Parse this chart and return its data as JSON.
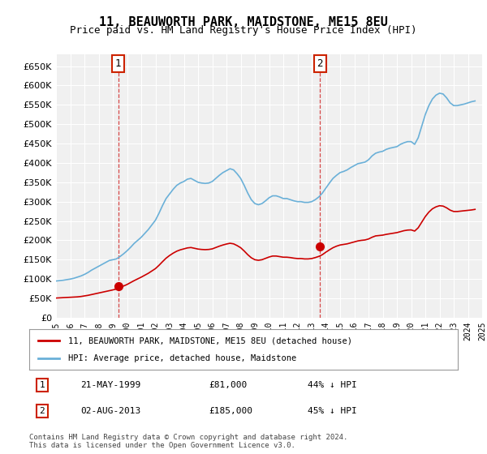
{
  "title": "11, BEAUWORTH PARK, MAIDSTONE, ME15 8EU",
  "subtitle": "Price paid vs. HM Land Registry's House Price Index (HPI)",
  "ylim": [
    0,
    680000
  ],
  "yticks": [
    0,
    50000,
    100000,
    150000,
    200000,
    250000,
    300000,
    350000,
    400000,
    450000,
    500000,
    550000,
    600000,
    650000
  ],
  "ylabel_format": "£{0}K",
  "x_start_year": 1995,
  "x_end_year": 2025,
  "background_color": "#ffffff",
  "plot_bg_color": "#f0f0f0",
  "grid_color": "#ffffff",
  "hpi_color": "#6ab0d8",
  "price_color": "#cc0000",
  "annotation_box_color": "#cc2200",
  "legend_label_red": "11, BEAUWORTH PARK, MAIDSTONE, ME15 8EU (detached house)",
  "legend_label_blue": "HPI: Average price, detached house, Maidstone",
  "sale1_date": "21-MAY-1999",
  "sale1_price": "£81,000",
  "sale1_hpi": "44% ↓ HPI",
  "sale1_year": 1999.38,
  "sale1_value": 81000,
  "sale2_date": "02-AUG-2013",
  "sale2_price": "£185,000",
  "sale2_hpi": "45% ↓ HPI",
  "sale2_year": 2013.58,
  "sale2_value": 185000,
  "footer": "Contains HM Land Registry data © Crown copyright and database right 2024.\nThis data is licensed under the Open Government Licence v3.0.",
  "hpi_data_x": [
    1995.0,
    1995.25,
    1995.5,
    1995.75,
    1996.0,
    1996.25,
    1996.5,
    1996.75,
    1997.0,
    1997.25,
    1997.5,
    1997.75,
    1998.0,
    1998.25,
    1998.5,
    1998.75,
    1999.0,
    1999.25,
    1999.5,
    1999.75,
    2000.0,
    2000.25,
    2000.5,
    2000.75,
    2001.0,
    2001.25,
    2001.5,
    2001.75,
    2002.0,
    2002.25,
    2002.5,
    2002.75,
    2003.0,
    2003.25,
    2003.5,
    2003.75,
    2004.0,
    2004.25,
    2004.5,
    2004.75,
    2005.0,
    2005.25,
    2005.5,
    2005.75,
    2006.0,
    2006.25,
    2006.5,
    2006.75,
    2007.0,
    2007.25,
    2007.5,
    2007.75,
    2008.0,
    2008.25,
    2008.5,
    2008.75,
    2009.0,
    2009.25,
    2009.5,
    2009.75,
    2010.0,
    2010.25,
    2010.5,
    2010.75,
    2011.0,
    2011.25,
    2011.5,
    2011.75,
    2012.0,
    2012.25,
    2012.5,
    2012.75,
    2013.0,
    2013.25,
    2013.5,
    2013.75,
    2014.0,
    2014.25,
    2014.5,
    2014.75,
    2015.0,
    2015.25,
    2015.5,
    2015.75,
    2016.0,
    2016.25,
    2016.5,
    2016.75,
    2017.0,
    2017.25,
    2017.5,
    2017.75,
    2018.0,
    2018.25,
    2018.5,
    2018.75,
    2019.0,
    2019.25,
    2019.5,
    2019.75,
    2020.0,
    2020.25,
    2020.5,
    2020.75,
    2021.0,
    2021.25,
    2021.5,
    2021.75,
    2022.0,
    2022.25,
    2022.5,
    2022.75,
    2023.0,
    2023.25,
    2023.5,
    2023.75,
    2024.0,
    2024.25,
    2024.5
  ],
  "hpi_data_y": [
    95000,
    96000,
    97000,
    98500,
    100000,
    102000,
    105000,
    108000,
    112000,
    117000,
    123000,
    128000,
    133000,
    138000,
    143000,
    148000,
    150000,
    152000,
    158000,
    165000,
    173000,
    182000,
    192000,
    200000,
    208000,
    218000,
    228000,
    240000,
    252000,
    270000,
    290000,
    308000,
    320000,
    332000,
    342000,
    348000,
    352000,
    358000,
    360000,
    355000,
    350000,
    348000,
    347000,
    348000,
    352000,
    360000,
    368000,
    375000,
    380000,
    385000,
    382000,
    372000,
    360000,
    342000,
    322000,
    305000,
    295000,
    292000,
    295000,
    302000,
    310000,
    315000,
    315000,
    312000,
    308000,
    308000,
    305000,
    302000,
    300000,
    300000,
    298000,
    298000,
    300000,
    305000,
    312000,
    322000,
    335000,
    348000,
    360000,
    368000,
    375000,
    378000,
    382000,
    388000,
    393000,
    398000,
    400000,
    402000,
    408000,
    418000,
    425000,
    428000,
    430000,
    435000,
    438000,
    440000,
    442000,
    448000,
    452000,
    455000,
    455000,
    448000,
    465000,
    495000,
    525000,
    548000,
    565000,
    575000,
    580000,
    578000,
    568000,
    555000,
    548000,
    548000,
    550000,
    552000,
    555000,
    558000,
    560000
  ],
  "price_data_x": [
    1995.0,
    1995.25,
    1995.5,
    1995.75,
    1996.0,
    1996.25,
    1996.5,
    1996.75,
    1997.0,
    1997.25,
    1997.5,
    1997.75,
    1998.0,
    1998.25,
    1998.5,
    1998.75,
    1999.0,
    1999.25,
    1999.5,
    1999.75,
    2000.0,
    2000.25,
    2000.5,
    2000.75,
    2001.0,
    2001.25,
    2001.5,
    2001.75,
    2002.0,
    2002.25,
    2002.5,
    2002.75,
    2003.0,
    2003.25,
    2003.5,
    2003.75,
    2004.0,
    2004.25,
    2004.5,
    2004.75,
    2005.0,
    2005.25,
    2005.5,
    2005.75,
    2006.0,
    2006.25,
    2006.5,
    2006.75,
    2007.0,
    2007.25,
    2007.5,
    2007.75,
    2008.0,
    2008.25,
    2008.5,
    2008.75,
    2009.0,
    2009.25,
    2009.5,
    2009.75,
    2010.0,
    2010.25,
    2010.5,
    2010.75,
    2011.0,
    2011.25,
    2011.5,
    2011.75,
    2012.0,
    2012.25,
    2012.5,
    2012.75,
    2013.0,
    2013.25,
    2013.5,
    2013.75,
    2014.0,
    2014.25,
    2014.5,
    2014.75,
    2015.0,
    2015.25,
    2015.5,
    2015.75,
    2016.0,
    2016.25,
    2016.5,
    2016.75,
    2017.0,
    2017.25,
    2017.5,
    2017.75,
    2018.0,
    2018.25,
    2018.5,
    2018.75,
    2019.0,
    2019.25,
    2019.5,
    2019.75,
    2020.0,
    2020.25,
    2020.5,
    2020.75,
    2021.0,
    2021.25,
    2021.5,
    2021.75,
    2022.0,
    2022.25,
    2022.5,
    2022.75,
    2023.0,
    2023.25,
    2023.5,
    2023.75,
    2024.0,
    2024.25,
    2024.5
  ],
  "price_data_y": [
    51000,
    51500,
    52000,
    52500,
    53000,
    53500,
    54000,
    55000,
    56500,
    58000,
    60000,
    62000,
    64000,
    66000,
    68000,
    70000,
    72000,
    74500,
    78000,
    82000,
    86000,
    91000,
    96000,
    100500,
    105000,
    110000,
    115000,
    121000,
    127000,
    135500,
    145000,
    154000,
    161000,
    167000,
    172000,
    175500,
    178000,
    180500,
    181500,
    179500,
    177500,
    176500,
    176000,
    176500,
    178000,
    181500,
    185000,
    188000,
    190500,
    192500,
    191000,
    186500,
    181000,
    172500,
    163000,
    155000,
    150000,
    148500,
    150000,
    153500,
    157000,
    159500,
    159500,
    158000,
    156500,
    156500,
    155500,
    154000,
    153000,
    153000,
    152000,
    152000,
    153000,
    155500,
    158500,
    163000,
    169500,
    175500,
    181000,
    185000,
    188000,
    189500,
    191000,
    193500,
    196000,
    198500,
    200000,
    201000,
    203500,
    208000,
    211500,
    212500,
    213500,
    215500,
    217000,
    218500,
    220000,
    222500,
    225000,
    226500,
    227000,
    224000,
    232500,
    247000,
    261500,
    273000,
    281500,
    286500,
    289500,
    288500,
    284000,
    278000,
    274500,
    274500,
    275500,
    276500,
    277500,
    278500,
    280000
  ]
}
